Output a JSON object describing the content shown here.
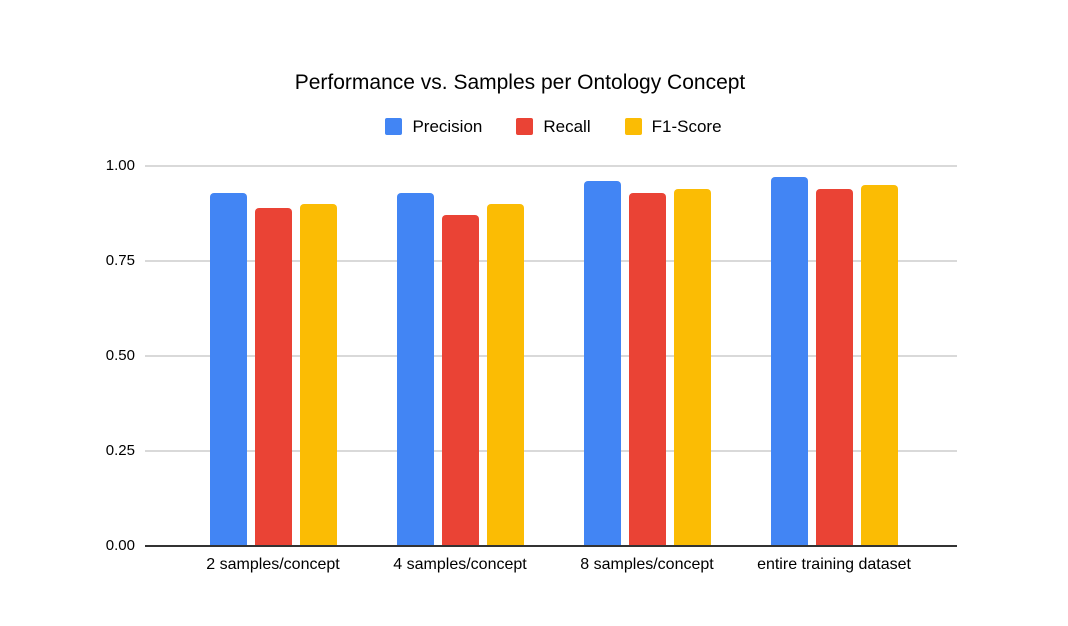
{
  "chart_data": {
    "type": "bar",
    "title": "Performance vs. Samples per Ontology Concept",
    "categories": [
      "2 samples/concept",
      "4 samples/concept",
      "8 samples/concept",
      "entire training dataset"
    ],
    "series": [
      {
        "name": "Precision",
        "color": "#4285F4",
        "values": [
          0.93,
          0.93,
          0.96,
          0.97
        ]
      },
      {
        "name": "Recall",
        "color": "#EA4335",
        "values": [
          0.89,
          0.87,
          0.93,
          0.94
        ]
      },
      {
        "name": "F1-Score",
        "color": "#FBBC04",
        "values": [
          0.9,
          0.9,
          0.94,
          0.95
        ]
      }
    ],
    "ylim": [
      0,
      1
    ],
    "ytick_values": [
      0,
      0.25,
      0.5,
      0.75,
      1
    ],
    "ytick_labels": [
      "0.00",
      "0.25",
      "0.50",
      "0.75",
      "1.00"
    ],
    "grid": true,
    "legend_position": "top",
    "xlabel": "",
    "ylabel": ""
  },
  "colors": {
    "background": "#ffffff",
    "gridline": "#d9d9d9",
    "axis_baseline": "#333333",
    "text": "#000000"
  }
}
